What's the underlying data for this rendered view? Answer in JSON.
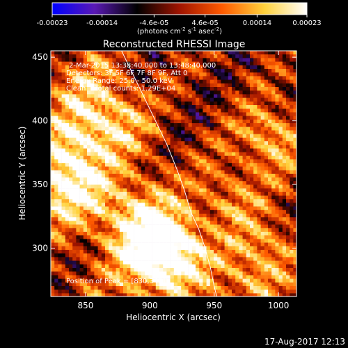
{
  "colorbar": {
    "tick_labels": [
      "-0.00023",
      "-0.00014",
      "-4.6e-05",
      "4.6e-05",
      "0.00014",
      "0.00023"
    ],
    "tick_values": [
      -0.00023,
      -0.00014,
      -4.6e-05,
      4.6e-05,
      0.00014,
      0.00023
    ],
    "min": -0.00023,
    "max": 0.00023,
    "units_prefix": "(photons cm",
    "units_exp1": "-2",
    "units_mid": " s",
    "units_exp2": "-1",
    "units_mid2": " asec",
    "units_exp3": "-2",
    "units_suffix": ")",
    "colors": [
      "#0000ff",
      "#5a19b4",
      "#000000",
      "#a01400",
      "#ff5a00",
      "#ffd23c",
      "#ffffff"
    ]
  },
  "chart_data": {
    "type": "heatmap",
    "title": "Reconstructed RHESSI Image",
    "xlabel": "Heliocentric X (arcsec)",
    "ylabel": "Heliocentric Y (arcsec)",
    "xlim": [
      823,
      1014
    ],
    "ylim": [
      262,
      455
    ],
    "x_ticks": [
      850,
      900,
      950,
      1000
    ],
    "y_ticks": [
      300,
      350,
      400,
      450
    ],
    "annotations": [
      "2-Mar-2015 13:38:40.000 to 13:48:40.000",
      "Detectors: 3F 5F 6F 7F 8F 9F, Att 0",
      "Energy Range: 25.0 - 50.0 keV",
      "Clean    Total counts: 1.29E+04"
    ],
    "peak_label": "Position of Peak = [830,349]",
    "peak": [
      830,
      349
    ],
    "limb": [
      [
        878,
        455
      ],
      [
        890,
        430
      ],
      [
        902,
        405
      ],
      [
        913,
        382
      ],
      [
        921,
        362
      ],
      [
        927,
        345
      ],
      [
        932,
        328
      ],
      [
        938,
        315
      ],
      [
        943,
        300
      ],
      [
        947,
        285
      ],
      [
        950,
        270
      ],
      [
        952,
        262
      ]
    ],
    "grid": false
  },
  "footer": {
    "date": "17-Aug-2017 12:13"
  }
}
